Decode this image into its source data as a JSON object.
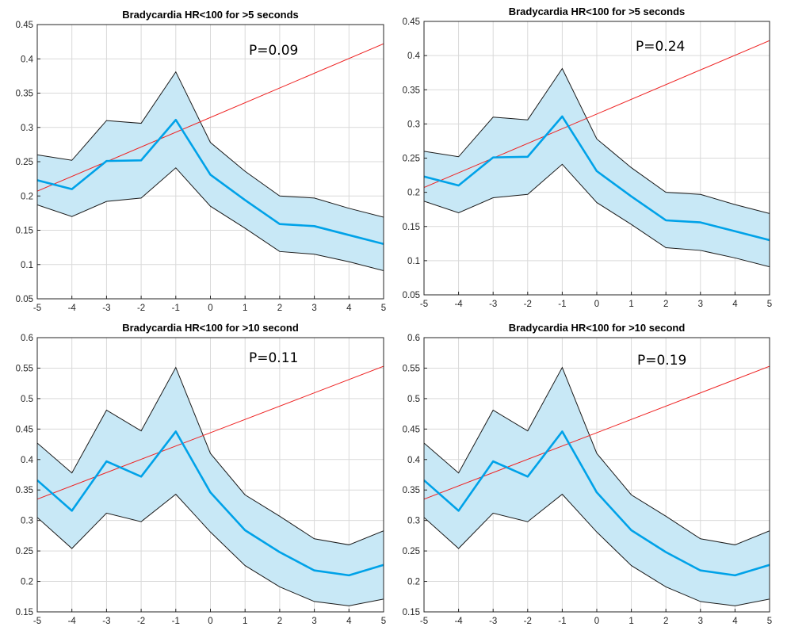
{
  "chart_data": [
    {
      "type": "line",
      "title": "Bradycardia HR<100 for >5 seconds",
      "annotation": "P=0.09",
      "xlim": [
        -5,
        5
      ],
      "ylim": [
        0.05,
        0.45
      ],
      "xticks": [
        -5,
        -4,
        -3,
        -2,
        -1,
        0,
        1,
        2,
        3,
        4,
        5
      ],
      "yticks": [
        0.05,
        0.1,
        0.15,
        0.2,
        0.25,
        0.3,
        0.35,
        0.4,
        0.45
      ],
      "x": [
        -5,
        -4,
        -3,
        -2,
        -1,
        0,
        1,
        2,
        3,
        4,
        5
      ],
      "mean": [
        0.223,
        0.21,
        0.251,
        0.252,
        0.311,
        0.231,
        0.194,
        0.159,
        0.156,
        0.143,
        0.13
      ],
      "upper": [
        0.26,
        0.252,
        0.31,
        0.306,
        0.381,
        0.278,
        0.236,
        0.2,
        0.197,
        0.182,
        0.169
      ],
      "lower": [
        0.187,
        0.17,
        0.192,
        0.197,
        0.241,
        0.185,
        0.153,
        0.119,
        0.115,
        0.104,
        0.091
      ],
      "trend": {
        "x": [
          -5,
          5
        ],
        "y": [
          0.207,
          0.422
        ]
      },
      "grid": true
    },
    {
      "type": "line",
      "title": "Bradycardia HR<100 for >5 seconds",
      "annotation": "P=0.24",
      "xlim": [
        -5,
        5
      ],
      "ylim": [
        0.05,
        0.45
      ],
      "xticks": [
        -5,
        -4,
        -3,
        -2,
        -1,
        0,
        1,
        2,
        3,
        4,
        5
      ],
      "yticks": [
        0.05,
        0.1,
        0.15,
        0.2,
        0.25,
        0.3,
        0.35,
        0.4,
        0.45
      ],
      "x": [
        -5,
        -4,
        -3,
        -2,
        -1,
        0,
        1,
        2,
        3,
        4,
        5
      ],
      "mean": [
        0.223,
        0.21,
        0.251,
        0.252,
        0.311,
        0.231,
        0.194,
        0.159,
        0.156,
        0.143,
        0.13
      ],
      "upper": [
        0.26,
        0.252,
        0.31,
        0.306,
        0.381,
        0.278,
        0.236,
        0.2,
        0.197,
        0.182,
        0.169
      ],
      "lower": [
        0.187,
        0.17,
        0.192,
        0.197,
        0.241,
        0.185,
        0.153,
        0.119,
        0.115,
        0.104,
        0.091
      ],
      "trend": {
        "x": [
          -5,
          5
        ],
        "y": [
          0.207,
          0.422
        ]
      },
      "grid": true
    },
    {
      "type": "line",
      "title": "Bradycardia HR<100 for >10 second",
      "annotation": "P=0.11",
      "xlim": [
        -5,
        5
      ],
      "ylim": [
        0.15,
        0.6
      ],
      "xticks": [
        -5,
        -4,
        -3,
        -2,
        -1,
        0,
        1,
        2,
        3,
        4,
        5
      ],
      "yticks": [
        0.15,
        0.2,
        0.25,
        0.3,
        0.35,
        0.4,
        0.45,
        0.5,
        0.55,
        0.6
      ],
      "x": [
        -5,
        -4,
        -3,
        -2,
        -1,
        0,
        1,
        2,
        3,
        4,
        5
      ],
      "mean": [
        0.366,
        0.316,
        0.397,
        0.372,
        0.446,
        0.346,
        0.284,
        0.248,
        0.218,
        0.21,
        0.227
      ],
      "upper": [
        0.427,
        0.378,
        0.481,
        0.447,
        0.551,
        0.41,
        0.342,
        0.307,
        0.27,
        0.26,
        0.283
      ],
      "lower": [
        0.305,
        0.254,
        0.312,
        0.298,
        0.343,
        0.281,
        0.226,
        0.191,
        0.167,
        0.16,
        0.171
      ],
      "trend": {
        "x": [
          -5,
          5
        ],
        "y": [
          0.335,
          0.553
        ]
      },
      "grid": true
    },
    {
      "type": "line",
      "title": "Bradycardia HR<100 for >10 second",
      "annotation": "P=0.19",
      "xlim": [
        -5,
        5
      ],
      "ylim": [
        0.15,
        0.6
      ],
      "xticks": [
        -5,
        -4,
        -3,
        -2,
        -1,
        0,
        1,
        2,
        3,
        4,
        5
      ],
      "yticks": [
        0.15,
        0.2,
        0.25,
        0.3,
        0.35,
        0.4,
        0.45,
        0.5,
        0.55,
        0.6
      ],
      "x": [
        -5,
        -4,
        -3,
        -2,
        -1,
        0,
        1,
        2,
        3,
        4,
        5
      ],
      "mean": [
        0.366,
        0.316,
        0.397,
        0.372,
        0.446,
        0.346,
        0.284,
        0.248,
        0.218,
        0.21,
        0.227
      ],
      "upper": [
        0.427,
        0.378,
        0.481,
        0.447,
        0.551,
        0.41,
        0.342,
        0.307,
        0.27,
        0.26,
        0.283
      ],
      "lower": [
        0.305,
        0.254,
        0.312,
        0.298,
        0.343,
        0.281,
        0.226,
        0.191,
        0.167,
        0.16,
        0.171
      ],
      "trend": {
        "x": [
          -5,
          5
        ],
        "y": [
          0.335,
          0.553
        ]
      },
      "grid": true
    }
  ],
  "colors": {
    "mean_line": "#00a2e8",
    "ci_band": "#c8e8f6",
    "ci_bound": "#1a1a1a",
    "trend_line": "#ee2222",
    "grid": "#d9d9d9"
  }
}
